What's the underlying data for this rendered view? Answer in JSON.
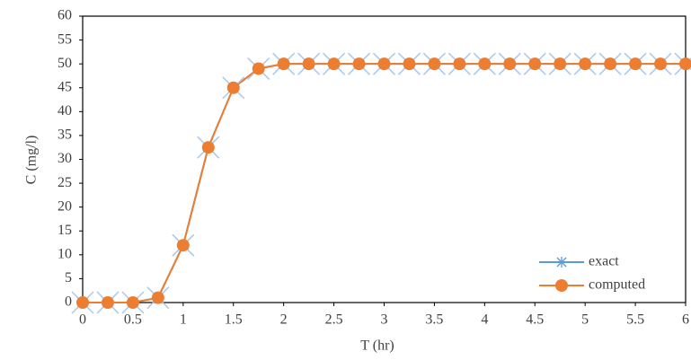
{
  "chart_data": {
    "type": "line",
    "x": [
      0,
      0.25,
      0.5,
      0.75,
      1,
      1.25,
      1.5,
      1.75,
      2,
      2.25,
      2.5,
      2.75,
      3,
      3.25,
      3.5,
      3.75,
      4,
      4.25,
      4.5,
      4.75,
      5,
      5.25,
      5.5,
      5.75,
      6
    ],
    "series": [
      {
        "name": "exact",
        "color": "#5b9bd5",
        "marker": "asterisk",
        "values": [
          0,
          0,
          0,
          1,
          12,
          32.5,
          45,
          49,
          50,
          50,
          50,
          50,
          50,
          50,
          50,
          50,
          50,
          50,
          50,
          50,
          50,
          50,
          50,
          50,
          50
        ]
      },
      {
        "name": "computed",
        "color": "#ed7d31",
        "marker": "circle",
        "values": [
          0,
          0,
          0,
          1,
          12,
          32.5,
          45,
          49,
          50,
          50,
          50,
          50,
          50,
          50,
          50,
          50,
          50,
          50,
          50,
          50,
          50,
          50,
          50,
          50,
          50
        ]
      }
    ],
    "xlabel": "T (hr)",
    "ylabel": "C (mg/l)",
    "xlim": [
      0,
      6
    ],
    "xticks": [
      0,
      0.5,
      1,
      1.5,
      2,
      2.5,
      3,
      3.5,
      4,
      4.5,
      5,
      5.5,
      6
    ],
    "ylim": [
      0,
      60
    ],
    "yticks": [
      0,
      5,
      10,
      15,
      20,
      25,
      30,
      35,
      40,
      45,
      50,
      55,
      60
    ],
    "grid": false,
    "legend": "lower right"
  }
}
